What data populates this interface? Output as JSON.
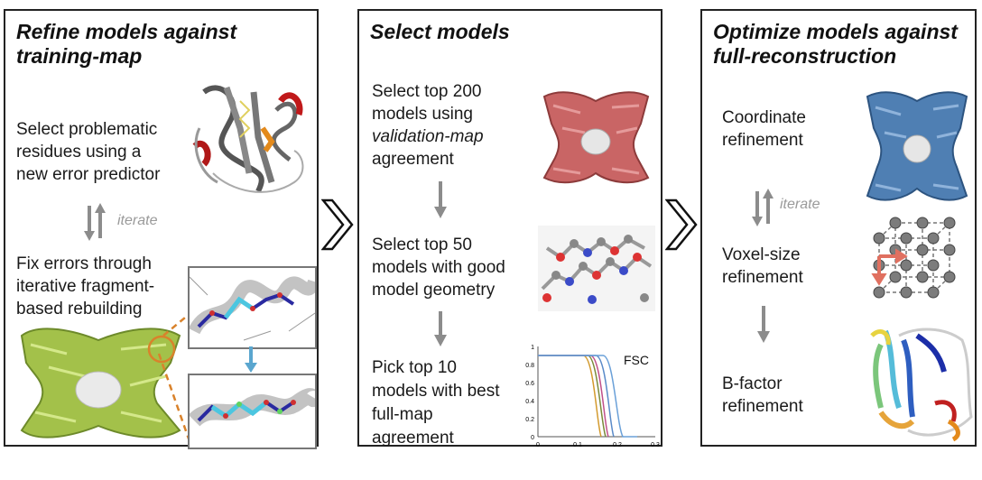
{
  "panels": [
    {
      "title_line1": "Refine models against",
      "title_line2": "training-map",
      "step1": [
        "Select problematic",
        "residues using a",
        "new error predictor"
      ],
      "iterate": "iterate",
      "step2": [
        "Fix errors through",
        "iterative fragment-",
        "based rebuilding"
      ]
    },
    {
      "title": "Select models",
      "step1_line1": "Select top 200",
      "step1_line2": "models using",
      "step1_line3_italic": "validation-map",
      "step1_line4": "agreement",
      "step2": [
        "Select top 50",
        "models with good",
        "model geometry"
      ],
      "step3": [
        "Pick top 10",
        "models with best",
        "full-map",
        "agreement"
      ]
    },
    {
      "title_line1": "Optimize models against",
      "title_line2": "full-reconstruction",
      "step1": [
        "Coordinate",
        "refinement"
      ],
      "iterate": "iterate",
      "step2": [
        "Voxel-size",
        "refinement"
      ],
      "step3": [
        "B-factor",
        "refinement"
      ]
    }
  ],
  "fsc_chart": {
    "label": "FSC",
    "yticks": [
      "1",
      "0.8",
      "0.6",
      "0.4",
      "0.2",
      "0"
    ],
    "xticks": [
      "0",
      "0.1",
      "0.2",
      "0.3"
    ]
  },
  "colors": {
    "map_green": "#a3c14a",
    "map_red": "#c96565",
    "map_blue": "#4f7fb3",
    "arrow_gray": "#8c8c8c",
    "zoom_orange": "#d9822b",
    "zoom_arrow_blue": "#5aa6cf"
  }
}
